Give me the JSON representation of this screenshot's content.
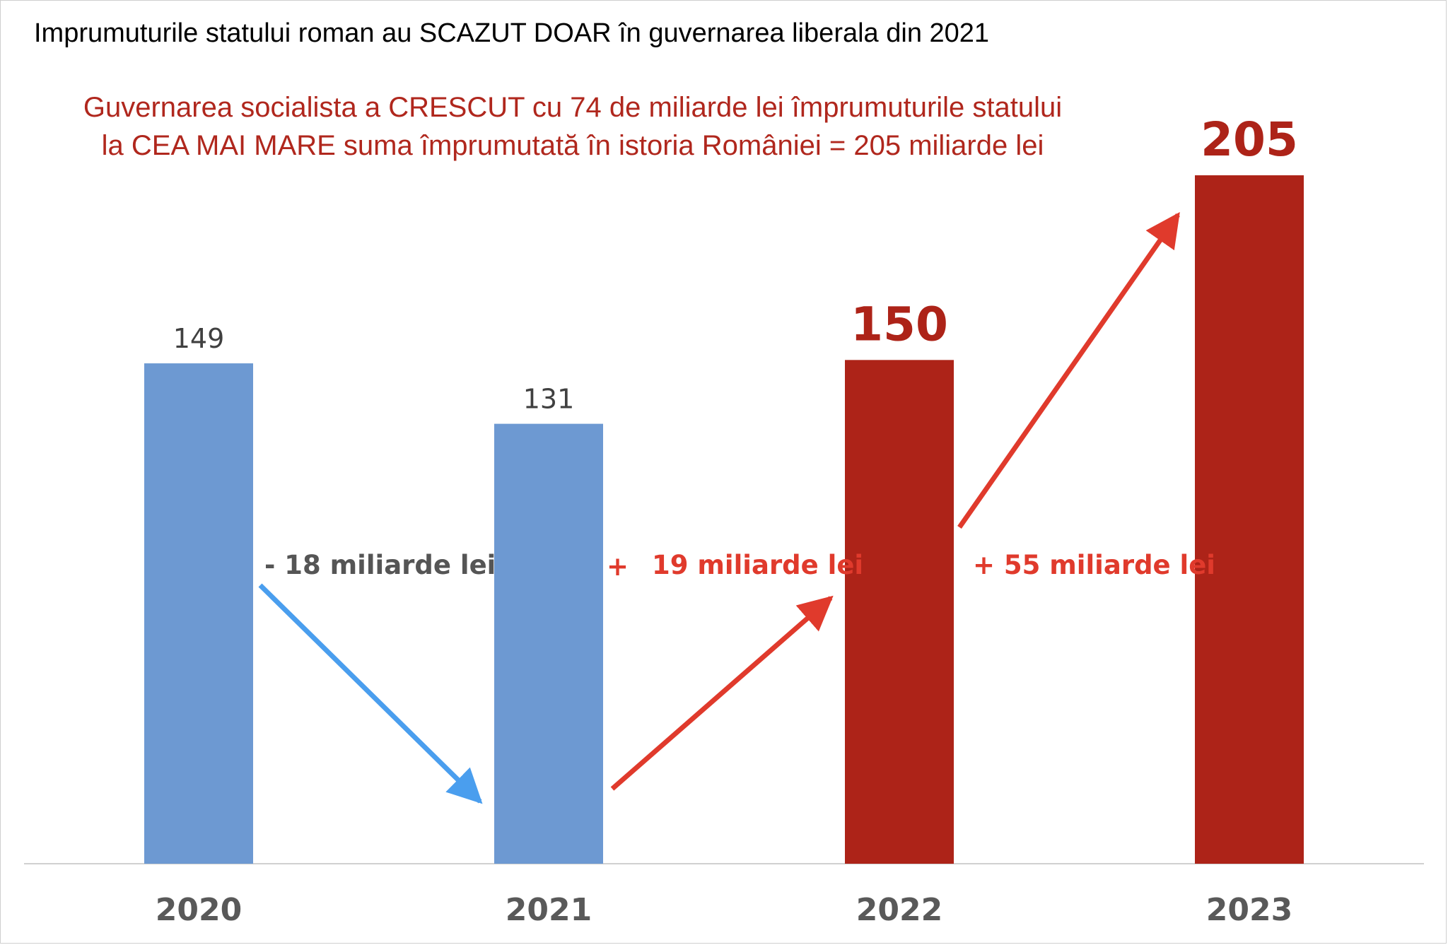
{
  "title": "Imprumuturile statului roman au SCAZUT DOAR în guvernarea liberala din 2021",
  "subtitle_lines": [
    "Guvernarea socialista a CRESCUT cu 74 de miliarde lei împrumuturile statului",
    "la  CEA MAI MARE suma împrumutată în istoria României = 205 miliarde lei"
  ],
  "colors": {
    "blue_bar": "#6d99d2",
    "red_bar": "#ad2318",
    "blue_arrow": "#4a9eee",
    "red_arrow": "#e03a2c",
    "label_gray": "#404040",
    "annotation_gray": "#555555",
    "annotation_red": "#e03a2c",
    "subtitle_red": "#b0271d",
    "axis": "#d0d0d0"
  },
  "chart_data": {
    "type": "bar",
    "title": "Imprumuturile statului roman au SCAZUT DOAR în guvernarea liberala din 2021",
    "categories": [
      "2020",
      "2021",
      "2022",
      "2023"
    ],
    "values": [
      149,
      131,
      150,
      205
    ],
    "value_labels": [
      "149",
      "131",
      "150",
      "205"
    ],
    "bar_colors": [
      "#6d99d2",
      "#6d99d2",
      "#ad2318",
      "#ad2318"
    ],
    "label_emphasis": [
      "normal",
      "normal",
      "large-red",
      "large-red"
    ],
    "xlabel": "",
    "ylabel": "",
    "ylim": [
      0,
      205
    ],
    "grid": false,
    "legend": "none",
    "annotations": [
      {
        "text": "- 18 miliarde lei",
        "from": "2020",
        "to": "2021",
        "delta": -18,
        "color": "#555555",
        "arrow_color": "#4a9eee"
      },
      {
        "text": "19 miliarde lei",
        "prefix": "+",
        "from": "2021",
        "to": "2022",
        "delta": 19,
        "color": "#e03a2c",
        "arrow_color": "#e03a2c"
      },
      {
        "text": "+ 55 miliarde lei",
        "from": "2022",
        "to": "2023",
        "delta": 55,
        "color": "#e03a2c",
        "arrow_color": "#e03a2c"
      }
    ]
  }
}
